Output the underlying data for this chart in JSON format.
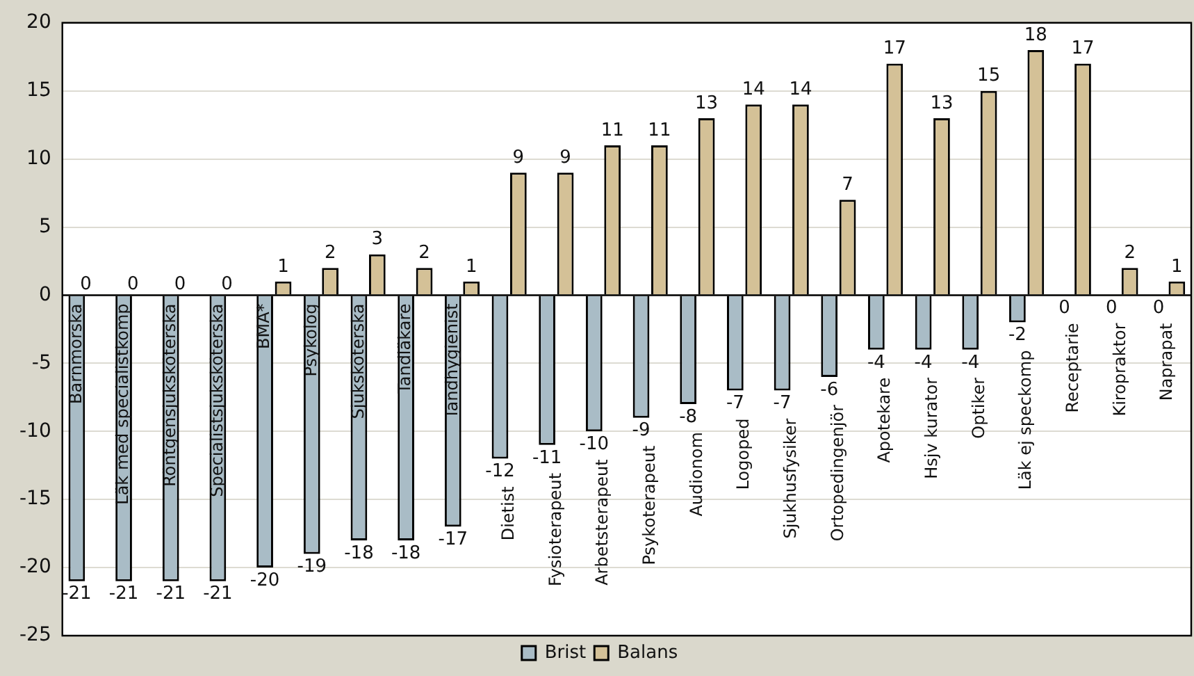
{
  "chart_data": {
    "type": "bar",
    "categories": [
      "Barnmorska",
      "Läk med specialistkomp",
      "Röntgensjuksköterska",
      "Specialistsjuksköterska",
      "BMA*",
      "Psykolog",
      "Sjuksköterska",
      "Tandläkare",
      "Tandhygienist",
      "Dietist",
      "Fysioterapeut",
      "Arbetsterapeut",
      "Psykoterapeut",
      "Audionom",
      "Logoped",
      "Sjukhusfysiker",
      "Ortopedingenjör",
      "Apotekare",
      "Hsjv kurator",
      "Optiker",
      "Läk ej speckomp",
      "Receptarie",
      "Kiropraktor",
      "Naprapat"
    ],
    "series": [
      {
        "name": "Brist",
        "color": "#a9bcc6",
        "values": [
          -21,
          -21,
          -21,
          -21,
          -20,
          -19,
          -18,
          -18,
          -17,
          -12,
          -11,
          -10,
          -9,
          -8,
          -7,
          -7,
          -6,
          -4,
          -4,
          -4,
          -2,
          0,
          0,
          0
        ]
      },
      {
        "name": "Balans",
        "color": "#d4c197",
        "values": [
          0,
          0,
          0,
          0,
          1,
          2,
          3,
          2,
          1,
          9,
          9,
          11,
          11,
          13,
          14,
          14,
          7,
          17,
          13,
          15,
          18,
          17,
          2,
          1
        ]
      }
    ],
    "ylim": [
      -25,
      20
    ],
    "yticks": [
      -25,
      -20,
      -15,
      -10,
      -5,
      0,
      5,
      10,
      15,
      20
    ],
    "grid": "y",
    "legend": "bottom",
    "data_labels": true
  }
}
